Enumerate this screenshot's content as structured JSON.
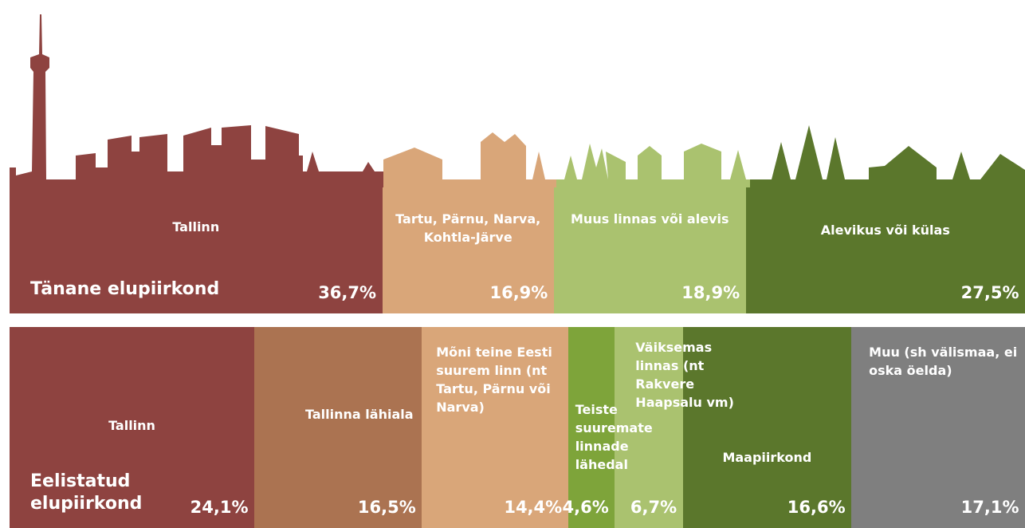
{
  "chart_data": [
    {
      "type": "stacked-bar",
      "title": "Tänane elupiirkond",
      "categories": [
        "Tallinn",
        "Tartu, Pärnu, Narva, Kohtla-Järve",
        "Muus linnas või alevis",
        "Alevikus või külas"
      ],
      "values": [
        36.7,
        16.9,
        18.9,
        27.5
      ],
      "value_labels": [
        "36,7%",
        "16,9%",
        "18,9%",
        "27,5%"
      ],
      "colors": [
        "#8e4340",
        "#d9a679",
        "#aac26f",
        "#5b772c"
      ]
    },
    {
      "type": "stacked-bar",
      "title": "Eelistatud elupiirkond",
      "categories": [
        "Tallinn",
        "Tallinna lähiala",
        "Mõni teine Eesti suurem linn (nt Tartu, Pärnu või Narva)",
        "Teiste suuremate linnade lähedal",
        "Väiksemas linnas (nt Rakvere Haapsalu vm)",
        "Maapiirkond",
        "Muu (sh välismaa, ei oska öelda)"
      ],
      "values": [
        24.1,
        16.5,
        14.4,
        4.6,
        6.7,
        16.6,
        17.1
      ],
      "value_labels": [
        "24,1%",
        "16,5%",
        "14,4%",
        "4,6%",
        "6,7%",
        "16,6%",
        "17,1%"
      ],
      "colors": [
        "#8e4340",
        "#ab7351",
        "#d9a679",
        "#7ea43a",
        "#aac26f",
        "#5b772c",
        "#7f7f7f"
      ]
    }
  ]
}
